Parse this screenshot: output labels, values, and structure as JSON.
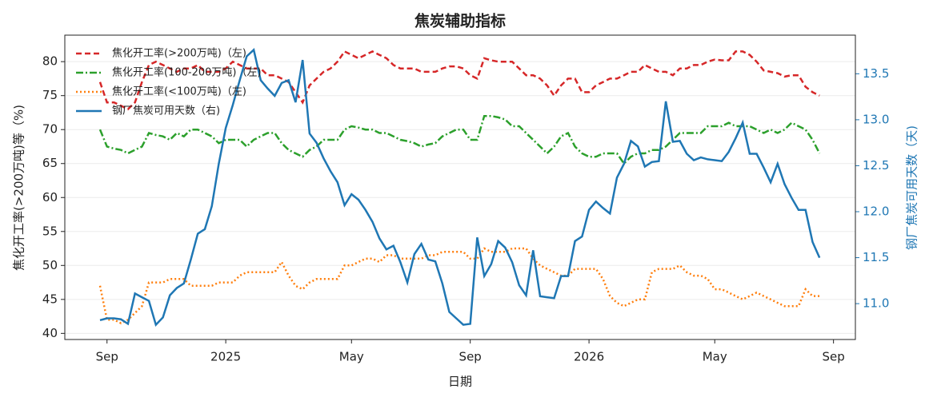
{
  "chart_data": {
    "type": "line",
    "title": "焦炭辅助指标",
    "x_label": "日期",
    "y_label": "焦化开工率(>200万吨)等（%)",
    "y2_label": "钢厂焦炭可用天数（天)",
    "categories": [
      null,
      "Sep",
      null,
      null,
      null,
      null,
      null,
      null,
      null,
      null,
      null,
      null,
      null,
      null,
      null,
      null,
      null,
      null,
      "2025",
      null,
      null,
      null,
      null,
      null,
      null,
      null,
      null,
      null,
      null,
      null,
      null,
      null,
      null,
      null,
      null,
      null,
      "May",
      null,
      null,
      null,
      null,
      null,
      null,
      null,
      null,
      null,
      null,
      null,
      null,
      null,
      null,
      null,
      null,
      "Sep",
      null,
      null,
      null,
      null,
      null,
      null,
      null,
      null,
      null,
      null,
      null,
      null,
      null,
      null,
      null,
      null,
      "2026",
      null,
      null,
      null,
      null,
      null,
      null,
      null,
      null,
      null,
      null,
      null,
      null,
      null,
      null,
      null,
      null,
      null,
      "May",
      null,
      null,
      null,
      null,
      null,
      null,
      null,
      null,
      null,
      null,
      null,
      null,
      null,
      null,
      null,
      null,
      "Sep"
    ],
    "series": [
      {
        "name": "焦化开工率(>200万吨)（左)",
        "color": "#d62728",
        "dash": "7 4",
        "axis": "y",
        "values": [
          77,
          74,
          74,
          73.5,
          73,
          74,
          77,
          79.5,
          80,
          79.5,
          79,
          78.5,
          79,
          79,
          79.5,
          78.5,
          78.5,
          78.5,
          79,
          80,
          79.5,
          79,
          79,
          79,
          78,
          78,
          77.5,
          77,
          75.5,
          74,
          76.5,
          77.5,
          78.5,
          79,
          80,
          81.5,
          81,
          80.5,
          81,
          81.5,
          81,
          80.5,
          79.5,
          79,
          79,
          79,
          78.5,
          78.5,
          78.5,
          79,
          79.3,
          79.3,
          79,
          78,
          77.5,
          80.5,
          80.2,
          80,
          80,
          80,
          79,
          78,
          78,
          77.5,
          76.5,
          75,
          76.5,
          77.5,
          77.5,
          75.5,
          75.5,
          76.5,
          77,
          77.5,
          77.5,
          78,
          78.5,
          78.5,
          79.5,
          79,
          78.5,
          78.5,
          78,
          79,
          79,
          79.5,
          79.5,
          80,
          80.3,
          80.2,
          80.2,
          81.5,
          81.5,
          81,
          80,
          78.7,
          78.5,
          78.3,
          77.8,
          78,
          78,
          76.3,
          75.5,
          75,
          null,
          null
        ]
      },
      {
        "name": "焦化开工率(100-200万吨)（左)",
        "color": "#2ca02c",
        "dash": "9 3 2 3",
        "axis": "y",
        "values": [
          70,
          67.5,
          67.2,
          67,
          66.5,
          67,
          67.5,
          69.5,
          69.2,
          69,
          68.5,
          69.5,
          69,
          70,
          70,
          69.5,
          69,
          68,
          68.5,
          68.5,
          68.5,
          67.5,
          68.5,
          69,
          69.5,
          69.5,
          68,
          67,
          66.5,
          66,
          67,
          67.5,
          68.5,
          68.5,
          68.5,
          70,
          70.5,
          70.3,
          70,
          70,
          69.5,
          69.5,
          69,
          68.5,
          68.3,
          68,
          67.5,
          67.8,
          68,
          69,
          69.5,
          70,
          70,
          68.5,
          68.5,
          72,
          72,
          71.8,
          71.5,
          70.5,
          70.5,
          69.5,
          68.5,
          67.5,
          66.5,
          67.5,
          69,
          69.5,
          67.5,
          66.5,
          66,
          66,
          66.5,
          66.5,
          66.5,
          65,
          66,
          66.5,
          66.5,
          67,
          67,
          67.5,
          68.5,
          69.5,
          69.5,
          69.5,
          69.5,
          70.5,
          70.5,
          70.5,
          71,
          70.5,
          70.5,
          70.5,
          70,
          69.5,
          70,
          69.5,
          70,
          71,
          70.5,
          70,
          68.5,
          66.5,
          null,
          null
        ]
      },
      {
        "name": "焦化开工率(<100万吨)（左)",
        "color": "#ff7f0e",
        "dash": "2 3",
        "axis": "y",
        "values": [
          47,
          42,
          42,
          41.5,
          42,
          43,
          44,
          47.5,
          47.5,
          47.5,
          48,
          48,
          48,
          47,
          47,
          47,
          47,
          47.5,
          47.5,
          47.5,
          48.5,
          49,
          49,
          49,
          49,
          49,
          50.5,
          48.5,
          47,
          46.5,
          47.5,
          48,
          48,
          48,
          48,
          50,
          50,
          50.5,
          51,
          51,
          50.5,
          51.5,
          51.5,
          51,
          51,
          51,
          51,
          51.5,
          51.5,
          52,
          52,
          52,
          52,
          51,
          51,
          52.5,
          52,
          52,
          52,
          52.5,
          52.5,
          52.5,
          51,
          50,
          49.5,
          49,
          48.5,
          48.5,
          49.5,
          49.5,
          49.5,
          49.5,
          48,
          45.5,
          44.5,
          44,
          44.5,
          45,
          45,
          49,
          49.5,
          49.5,
          49.5,
          50,
          49,
          48.5,
          48.5,
          48,
          46.5,
          46.5,
          46,
          45.5,
          45,
          45.5,
          46,
          45.5,
          45,
          44.5,
          44,
          44,
          44,
          46.5,
          45.5,
          45.5,
          null,
          null
        ]
      },
      {
        "name": "钢厂焦炭可用天数（右)",
        "color": "#1f77b4",
        "dash": "none",
        "axis": "y2",
        "values": [
          10.82,
          10.84,
          10.84,
          10.83,
          10.78,
          11.11,
          11.07,
          11.03,
          10.77,
          10.85,
          11.09,
          11.17,
          11.22,
          11.48,
          11.76,
          11.81,
          12.06,
          12.52,
          12.91,
          13.16,
          13.43,
          13.69,
          13.76,
          13.43,
          13.34,
          13.26,
          13.4,
          13.43,
          13.19,
          13.65,
          12.85,
          12.75,
          12.58,
          12.44,
          12.32,
          12.07,
          12.19,
          12.13,
          12.02,
          11.89,
          11.71,
          11.59,
          11.63,
          11.45,
          11.23,
          11.54,
          11.65,
          11.48,
          11.46,
          11.22,
          10.91,
          10.84,
          10.77,
          10.78,
          11.72,
          11.3,
          11.43,
          11.68,
          11.61,
          11.45,
          11.2,
          11.09,
          11.58,
          11.08,
          11.07,
          11.06,
          11.3,
          11.3,
          11.68,
          11.73,
          12.02,
          12.11,
          12.04,
          11.98,
          12.37,
          12.52,
          12.77,
          12.71,
          12.49,
          12.54,
          12.55,
          13.2,
          12.76,
          12.77,
          12.63,
          12.56,
          12.59,
          12.57,
          12.56,
          12.55,
          12.65,
          12.8,
          12.97,
          12.63,
          12.63,
          12.48,
          12.32,
          12.52,
          12.3,
          12.15,
          12.02,
          12.02,
          11.67,
          11.5,
          null,
          null
        ]
      }
    ],
    "ylim": [
      39.1,
      83.9
    ],
    "yticks": [
      40,
      45,
      50,
      55,
      60,
      65,
      70,
      75,
      80
    ],
    "y2lim": [
      10.61,
      13.92
    ],
    "y2ticks": [
      {
        "value": 11,
        "label": "11.0"
      },
      11.5,
      {
        "value": 12,
        "label": "12.0"
      },
      12.5,
      {
        "value": 13,
        "label": "13.0"
      },
      13.5
    ],
    "y2_color": "#1f77b4",
    "grid": true,
    "legend": "upper left"
  }
}
